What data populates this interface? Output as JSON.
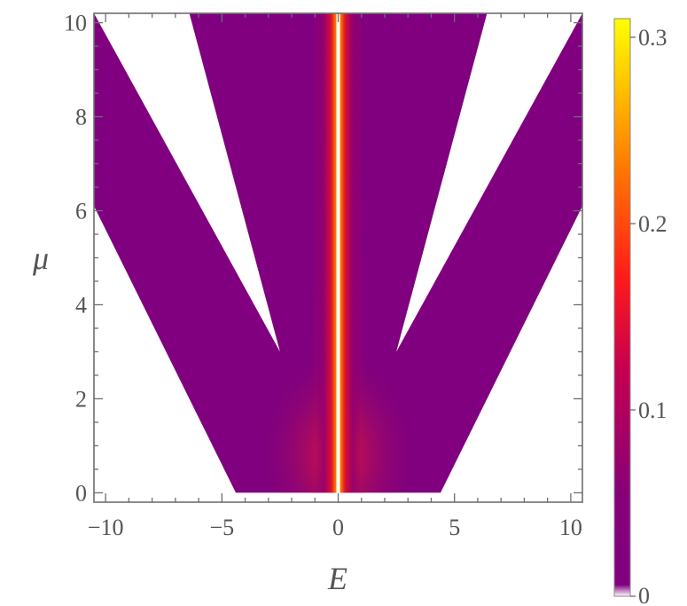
{
  "chart_data": {
    "type": "heatmap",
    "title": "",
    "xlabel": "E",
    "ylabel": "μ",
    "xlim": [
      -10.5,
      10.5
    ],
    "ylim": [
      -0.2,
      10.2
    ],
    "x_ticks": [
      -10,
      -5,
      0,
      5,
      10
    ],
    "x_tick_labels": [
      "−10",
      "−5",
      "0",
      "5",
      "10"
    ],
    "y_ticks": [
      0,
      2,
      4,
      6,
      8,
      10
    ],
    "y_tick_labels": [
      "0",
      "2",
      "4",
      "6",
      "8",
      "10"
    ],
    "colorbar": {
      "range": [
        0,
        0.31
      ],
      "ticks": [
        0,
        0.1,
        0.2,
        0.3
      ],
      "tick_labels": [
        "0",
        "0.1",
        "0.2",
        "0.3"
      ],
      "colormap": [
        "#ffffff",
        "#80007f",
        "#ff1a1a",
        "#ff8800",
        "#ffff00"
      ]
    },
    "regions": {
      "outer_boundary": [
        [
          -10.5,
          6.1
        ],
        [
          -4.4,
          0
        ],
        [
          4.4,
          0
        ],
        [
          10.5,
          6.1
        ]
      ],
      "inner_gap_left": [
        [
          -10.5,
          10.2
        ],
        [
          -6.4,
          10.2
        ],
        [
          -2.5,
          3.0
        ]
      ],
      "inner_gap_right": [
        [
          2.5,
          3.0
        ],
        [
          6.4,
          10.2
        ],
        [
          10.5,
          10.2
        ]
      ],
      "central_lobe": [
        [
          -1.0,
          10.2
        ],
        [
          -1.1,
          0
        ],
        [
          1.1,
          0
        ],
        [
          1.0,
          10.2
        ]
      ]
    },
    "peak": {
      "E": 0,
      "value": 0.31
    },
    "grid": false
  }
}
